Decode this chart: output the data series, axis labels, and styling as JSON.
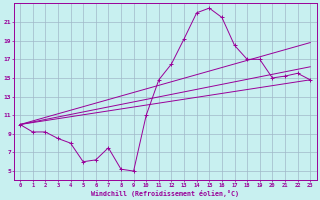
{
  "xlabel": "Windchill (Refroidissement éolien,°C)",
  "bg_color": "#c8f0f0",
  "grid_color": "#a0b8c8",
  "line_color": "#990099",
  "xlim": [
    -0.5,
    23.5
  ],
  "ylim": [
    4.0,
    23.0
  ],
  "yticks": [
    5,
    7,
    9,
    11,
    13,
    15,
    17,
    19,
    21
  ],
  "xticks": [
    0,
    1,
    2,
    3,
    4,
    5,
    6,
    7,
    8,
    9,
    10,
    11,
    12,
    13,
    14,
    15,
    16,
    17,
    18,
    19,
    20,
    21,
    22,
    23
  ],
  "line1_x": [
    0,
    1,
    2,
    3,
    4,
    5,
    6,
    7,
    8,
    9,
    10,
    11,
    12,
    13,
    14,
    15,
    16,
    17,
    18,
    19,
    20,
    21,
    22,
    23
  ],
  "line1_y": [
    10.0,
    9.2,
    9.2,
    8.5,
    8.0,
    6.0,
    6.2,
    7.5,
    5.2,
    5.0,
    11.0,
    14.8,
    16.5,
    19.2,
    22.0,
    22.5,
    21.5,
    18.5,
    17.0,
    17.0,
    15.0,
    15.2,
    15.5,
    14.8
  ],
  "line2_x": [
    0,
    23
  ],
  "line2_y": [
    10.0,
    14.8
  ],
  "line3_x": [
    0,
    23
  ],
  "line3_y": [
    10.0,
    16.2
  ],
  "line4_x": [
    0,
    23
  ],
  "line4_y": [
    10.0,
    18.8
  ]
}
